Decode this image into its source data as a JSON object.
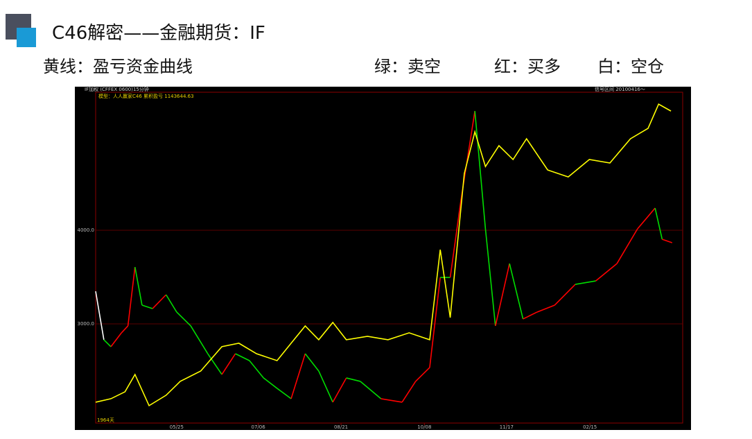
{
  "header": {
    "title": "C46解密——金融期货：IF",
    "legend_text": [
      "黄线：盈亏资金曲线",
      "绿：卖空",
      "红：买多",
      "白：空仓"
    ]
  },
  "chart_data": {
    "type": "line",
    "header_left": "IF加权  (CFFEX 0600)15分钟",
    "header_right": "信号区间 20100416～",
    "model_label": "模型：人人赢家C46  累积盈亏 1143644.63",
    "footer_label": "1964天",
    "xlim": [
      0,
      100
    ],
    "xticks": [
      {
        "value": 13.8,
        "label": "05/25"
      },
      {
        "value": 27.7,
        "label": "07/06"
      },
      {
        "value": 41.8,
        "label": "08/21"
      },
      {
        "value": 56,
        "label": "10/08"
      },
      {
        "value": 70,
        "label": "11/17"
      },
      {
        "value": 84.2,
        "label": "02/15"
      }
    ],
    "ylim": [
      1940,
      5475
    ],
    "yticks": [
      {
        "value": 3000,
        "label": "3000.0"
      },
      {
        "value": 4000,
        "label": "4000.0"
      }
    ],
    "grid": true,
    "series": [
      {
        "x": [
          0,
          1.4,
          2.6,
          4.4,
          5.5,
          6.7,
          7.9,
          9.7,
          12,
          13.8,
          16.2,
          19.1,
          21.5,
          23.8,
          26.2,
          28.6,
          30.9,
          33.3,
          35.7,
          38,
          40.4,
          42.7,
          45.1,
          48.6,
          52.2,
          54.5,
          56.9,
          58.7,
          60.4,
          62.2,
          64.6,
          66.4,
          68.1,
          70.5,
          72.8,
          75.2,
          78.2,
          81.7,
          85.2,
          88.8,
          92.3,
          95.3,
          96.5,
          98.2
        ],
        "values": [
          3348,
          2830,
          2756,
          2904,
          2978,
          3607,
          3200,
          3163,
          3311,
          3126,
          2978,
          2681,
          2459,
          2681,
          2607,
          2422,
          2311,
          2200,
          2681,
          2496,
          2163,
          2422,
          2385,
          2200,
          2163,
          2385,
          2533,
          3496,
          3496,
          4311,
          5274,
          4015,
          2978,
          3644,
          3052,
          3126,
          3200,
          3422,
          3459,
          3644,
          4015,
          4237,
          3904,
          3867
        ],
        "colors": [
          "#ffffff",
          "#ffffff",
          "#00dd00",
          "#ff0000",
          "#ff0000",
          "#ff0000",
          "#00dd00",
          "#00dd00",
          "#ff0000",
          "#00dd00",
          "#00dd00",
          "#00dd00",
          "#00dd00",
          "#ff0000",
          "#00dd00",
          "#00dd00",
          "#00dd00",
          "#00dd00",
          "#ff0000",
          "#00dd00",
          "#00dd00",
          "#ff0000",
          "#00dd00",
          "#00dd00",
          "#ff0000",
          "#ff0000",
          "#ff0000",
          "#ff0000",
          "#00dd00",
          "#ff0000",
          "#ff0000",
          "#00dd00",
          "#00dd00",
          "#ff0000",
          "#00dd00",
          "#ff0000",
          "#ff0000",
          "#ff0000",
          "#00dd00",
          "#ff0000",
          "#ff0000",
          "#ff0000",
          "#00dd00",
          "#ff0000"
        ]
      },
      {
        "color": "#ffff00",
        "x": [
          0,
          2.6,
          5,
          6.7,
          9.1,
          12,
          14.4,
          17.9,
          21.5,
          24.4,
          27.4,
          30.9,
          33.3,
          35.7,
          38,
          40.4,
          42.7,
          46.3,
          49.8,
          53.4,
          56.9,
          58.7,
          60.4,
          62.8,
          64.6,
          66.4,
          68.7,
          71.1,
          73.4,
          77,
          80.5,
          84.1,
          87.6,
          91.1,
          94.1,
          95.9,
          98
        ],
        "values": [
          2163,
          2200,
          2274,
          2459,
          2126,
          2237,
          2385,
          2496,
          2756,
          2793,
          2681,
          2607,
          2793,
          2978,
          2830,
          3015,
          2830,
          2867,
          2830,
          2904,
          2830,
          3793,
          3067,
          4607,
          5052,
          4681,
          4904,
          4756,
          4978,
          4644,
          4570,
          4756,
          4719,
          4978,
          5089,
          5348,
          5274
        ]
      }
    ]
  }
}
